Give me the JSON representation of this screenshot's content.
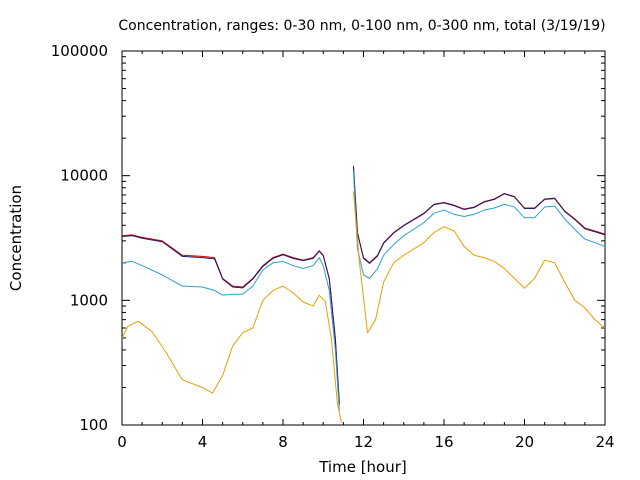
{
  "chart_data": {
    "type": "line",
    "title": "Concentration, ranges: 0-30 nm, 0-100 nm, 0-300 nm, total (3/19/19)",
    "xlabel": "Time [hour]",
    "ylabel": "Concentration",
    "xlim": [
      0,
      24
    ],
    "ylim": [
      100,
      100000
    ],
    "yscale": "log",
    "grid": false,
    "legend": "none",
    "x_ticks": [
      0,
      4,
      8,
      12,
      16,
      20,
      24
    ],
    "x_tick_labels": [
      "0",
      "4",
      "8",
      "12",
      "16",
      "20",
      "24"
    ],
    "y_ticks": [
      100,
      1000,
      10000,
      100000
    ],
    "y_tick_labels": [
      "100",
      "1000",
      "10000",
      "100000"
    ],
    "series": [
      {
        "color": "#cc0000",
        "x": [
          0,
          0.5,
          1,
          2,
          3,
          4,
          4.6,
          5,
          5.5,
          6,
          6.5,
          7,
          7.5,
          8,
          8.5,
          9,
          9.5,
          9.8,
          10,
          10.3,
          10.6,
          10.8,
          null,
          11.5,
          11.7,
          12,
          12.3,
          12.7,
          13,
          13.5,
          14,
          15,
          15.5,
          16,
          16.5,
          17,
          17.5,
          18,
          18.5,
          19,
          19.5,
          20,
          20.5,
          21,
          21.5,
          22,
          22.5,
          23,
          23.5,
          24
        ],
        "y": [
          3300,
          3350,
          3200,
          3000,
          2300,
          2250,
          2200,
          1500,
          1300,
          1280,
          1500,
          1900,
          2200,
          2350,
          2200,
          2100,
          2200,
          2500,
          2300,
          1500,
          500,
          150,
          null,
          12000,
          3500,
          2200,
          2000,
          2300,
          2900,
          3500,
          4000,
          5000,
          5900,
          6100,
          5800,
          5400,
          5600,
          6200,
          6500,
          7200,
          6800,
          5500,
          5500,
          6500,
          6600,
          5200,
          4500,
          3800,
          3600,
          3400
        ]
      },
      {
        "color": "#1a1a6e",
        "x": [
          0,
          0.5,
          1,
          2,
          3,
          4,
          4.6,
          5,
          5.5,
          6,
          6.5,
          7,
          7.5,
          8,
          8.5,
          9,
          9.5,
          9.8,
          10,
          10.3,
          10.6,
          10.8,
          null,
          11.5,
          11.7,
          12,
          12.3,
          12.7,
          13,
          13.5,
          14,
          15,
          15.5,
          16,
          16.5,
          17,
          17.5,
          18,
          18.5,
          19,
          19.5,
          20,
          20.5,
          21,
          21.5,
          22,
          22.5,
          23,
          23.5,
          24
        ],
        "y": [
          3250,
          3300,
          3150,
          2950,
          2250,
          2200,
          2150,
          1480,
          1280,
          1260,
          1480,
          1870,
          2170,
          2320,
          2170,
          2080,
          2170,
          2480,
          2280,
          1480,
          490,
          145,
          null,
          11800,
          3450,
          2170,
          1980,
          2270,
          2870,
          3470,
          3970,
          4950,
          5850,
          6050,
          5750,
          5350,
          5550,
          6150,
          6450,
          7150,
          6750,
          5450,
          5450,
          6450,
          6550,
          5150,
          4450,
          3750,
          3550,
          3350
        ]
      },
      {
        "color": "#2c9fcf",
        "x": [
          0,
          0.5,
          1,
          2,
          3,
          4,
          4.6,
          5,
          5.5,
          6,
          6.5,
          7,
          7.5,
          8,
          8.5,
          9,
          9.5,
          9.8,
          10,
          10.3,
          10.6,
          10.8,
          null,
          11.5,
          11.7,
          12,
          12.3,
          12.7,
          13,
          13.5,
          14,
          15,
          15.5,
          16,
          16.5,
          17,
          17.5,
          18,
          18.5,
          19,
          19.5,
          20,
          20.5,
          21,
          21.5,
          22,
          22.5,
          23,
          23.5,
          24
        ],
        "y": [
          2000,
          2050,
          1900,
          1600,
          1300,
          1280,
          1200,
          1100,
          1120,
          1120,
          1300,
          1750,
          2000,
          2050,
          1900,
          1800,
          1900,
          2200,
          1900,
          1200,
          400,
          130,
          null,
          11000,
          2600,
          1600,
          1500,
          1800,
          2300,
          2800,
          3300,
          4200,
          5000,
          5300,
          4900,
          4700,
          4900,
          5300,
          5500,
          5900,
          5600,
          4600,
          4600,
          5600,
          5700,
          4500,
          3700,
          3100,
          2900,
          2700
        ]
      },
      {
        "color": "#e6a000",
        "x": [
          0,
          0.3,
          0.8,
          1.5,
          2.2,
          3,
          4,
          4.5,
          5,
          5.5,
          6,
          6.5,
          7,
          7.5,
          8,
          8.5,
          9,
          9.5,
          9.8,
          10.1,
          10.4,
          10.7,
          10.9,
          null,
          11.5,
          11.8,
          12.2,
          12.6,
          13,
          13.5,
          14,
          15,
          15.5,
          16,
          16.5,
          17,
          17.5,
          18,
          18.5,
          19,
          19.5,
          20,
          20.5,
          21,
          21.5,
          22,
          22.5,
          23,
          23.5,
          24
        ],
        "y": [
          500,
          620,
          680,
          560,
          380,
          230,
          200,
          180,
          250,
          430,
          550,
          600,
          1000,
          1200,
          1300,
          1150,
          970,
          900,
          1100,
          980,
          500,
          150,
          105,
          null,
          7500,
          2000,
          550,
          700,
          1400,
          2000,
          2300,
          2900,
          3500,
          3900,
          3600,
          2700,
          2300,
          2200,
          2050,
          1800,
          1500,
          1250,
          1500,
          2100,
          2000,
          1400,
          1000,
          870,
          700,
          600
        ]
      }
    ]
  }
}
